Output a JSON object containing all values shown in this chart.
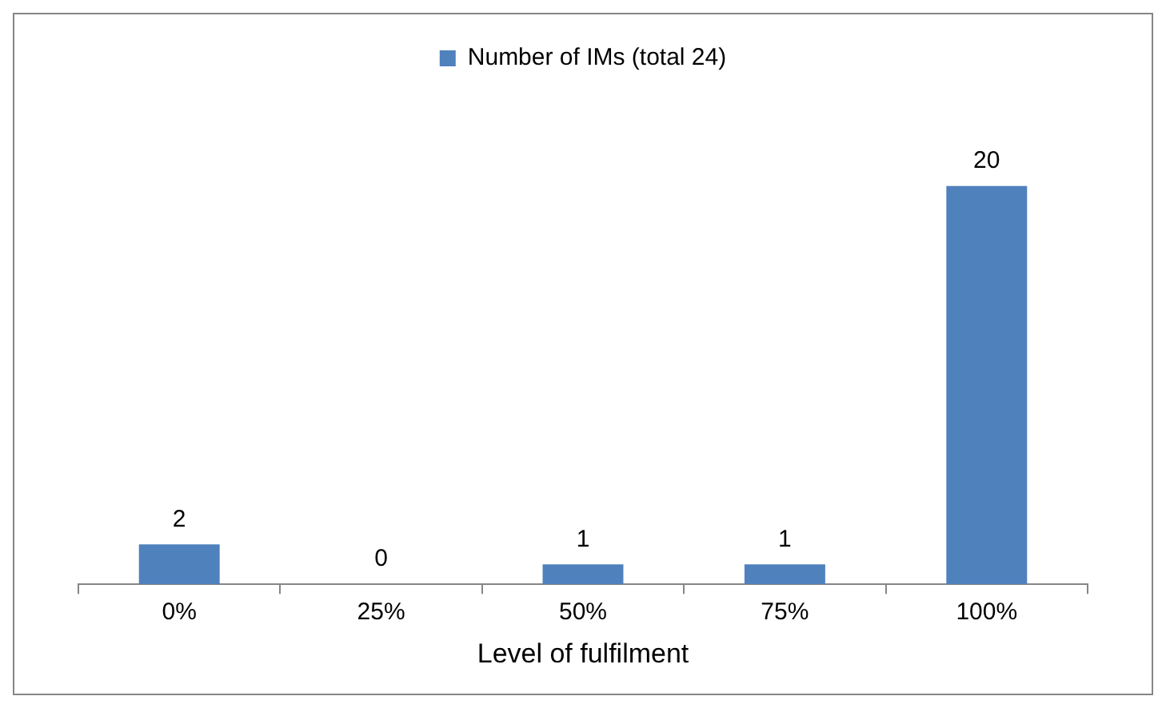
{
  "chart_data": {
    "type": "bar",
    "xlabel": "Level of fulfilment",
    "categories": [
      "0%",
      "25%",
      "50%",
      "75%",
      "100%"
    ],
    "series": [
      {
        "name": "Number of IMs (total 24)",
        "color": "#4f81bd",
        "values": [
          2,
          0,
          1,
          1,
          20
        ]
      }
    ],
    "data_labels": true,
    "legend": "top",
    "grid": false
  }
}
